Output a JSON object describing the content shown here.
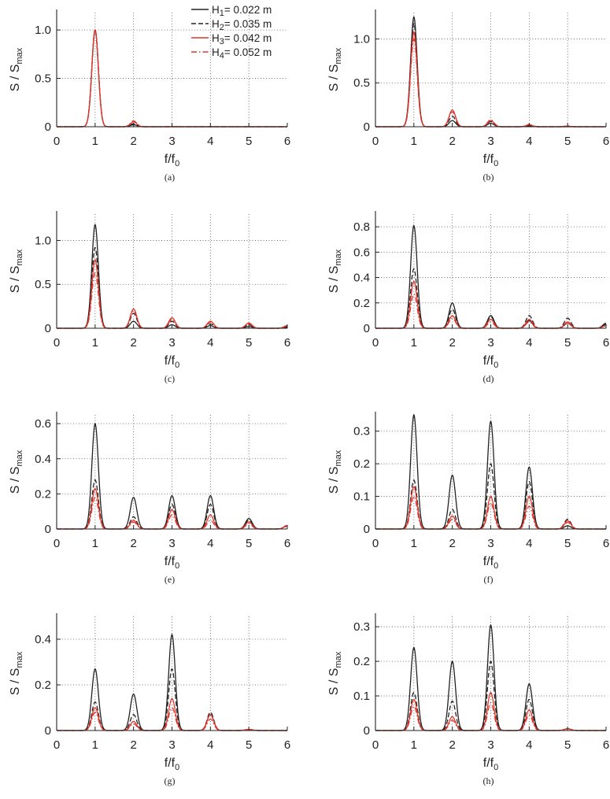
{
  "figure": {
    "panels_axis": {
      "x_label": "f/f0",
      "y_label": "S / Smax"
    },
    "captions": [
      "(a)",
      "(b)",
      "(c)",
      "(d)",
      "(e)",
      "(f)",
      "(g)",
      "(h)"
    ]
  },
  "legend": {
    "entries": [
      {
        "label": "H1= 0.022 m",
        "color": "#222222",
        "dash": "solid"
      },
      {
        "label": "H2= 0.035 m",
        "color": "#222222",
        "dash": "dashed"
      },
      {
        "label": "H3= 0.042 m",
        "color": "#e0352b",
        "dash": "solid"
      },
      {
        "label": "H4= 0.052 m",
        "color": "#e0352b",
        "dash": "dashdot"
      }
    ]
  },
  "chart_data": [
    {
      "type": "line",
      "caption": "(a)",
      "xlabel": "f/f0",
      "ylabel": "S / Smax",
      "xlim": [
        0,
        6
      ],
      "ylim": [
        0,
        1.18
      ],
      "yticks": [
        0,
        0.5,
        1.0
      ],
      "ytick_labels": [
        "0",
        "0.5",
        "1.0"
      ],
      "grid": true,
      "harmonics": [
        1,
        2,
        3,
        4,
        5,
        6
      ],
      "series": [
        {
          "name": "H1= 0.022 m",
          "peaks": [
            1.0,
            0.02,
            0,
            0,
            0,
            0
          ]
        },
        {
          "name": "H2= 0.035 m",
          "peaks": [
            1.0,
            0.03,
            0,
            0,
            0,
            0
          ]
        },
        {
          "name": "H3= 0.042 m",
          "peaks": [
            1.0,
            0.05,
            0,
            0,
            0,
            0
          ]
        },
        {
          "name": "H4= 0.052 m",
          "peaks": [
            1.0,
            0.06,
            0.005,
            0,
            0,
            0
          ]
        }
      ]
    },
    {
      "type": "line",
      "caption": "(b)",
      "xlabel": "f/f0",
      "ylabel": "S / Smax",
      "xlim": [
        0,
        6
      ],
      "ylim": [
        0,
        1.3
      ],
      "yticks": [
        0,
        0.5,
        1.0
      ],
      "ytick_labels": [
        "0",
        "0.5",
        "1.0"
      ],
      "grid": true,
      "harmonics": [
        1,
        2,
        3,
        4,
        5,
        6
      ],
      "series": [
        {
          "name": "H1= 0.022 m",
          "peaks": [
            1.25,
            0.07,
            0.04,
            0.01,
            0,
            0
          ]
        },
        {
          "name": "H2= 0.035 m",
          "peaks": [
            1.18,
            0.12,
            0.06,
            0.015,
            0.005,
            0
          ]
        },
        {
          "name": "H3= 0.042 m",
          "peaks": [
            1.08,
            0.19,
            0.07,
            0.02,
            0.005,
            0
          ]
        },
        {
          "name": "H4= 0.052 m",
          "peaks": [
            1.0,
            0.17,
            0.08,
            0.025,
            0.01,
            0
          ]
        }
      ]
    },
    {
      "type": "line",
      "caption": "(c)",
      "xlabel": "f/f0",
      "ylabel": "S / Smax",
      "xlim": [
        0,
        6
      ],
      "ylim": [
        0,
        1.3
      ],
      "yticks": [
        0,
        0.5,
        1.0
      ],
      "ytick_labels": [
        "0",
        "0.5",
        "1.0"
      ],
      "grid": true,
      "harmonics": [
        1,
        2,
        3,
        4,
        5,
        6
      ],
      "series": [
        {
          "name": "H1= 0.022 m",
          "peaks": [
            1.18,
            0.08,
            0.04,
            0.03,
            0.02,
            0.01
          ]
        },
        {
          "name": "H2= 0.035 m",
          "peaks": [
            0.92,
            0.17,
            0.08,
            0.05,
            0.04,
            0.02
          ]
        },
        {
          "name": "H3= 0.042 m",
          "peaks": [
            0.78,
            0.22,
            0.12,
            0.08,
            0.06,
            0.03
          ]
        },
        {
          "name": "H4= 0.052 m",
          "peaks": [
            0.63,
            0.2,
            0.1,
            0.07,
            0.05,
            0.025
          ]
        }
      ]
    },
    {
      "type": "line",
      "caption": "(d)",
      "xlabel": "f/f0",
      "ylabel": "S / Smax",
      "xlim": [
        0,
        6
      ],
      "ylim": [
        0,
        0.9
      ],
      "yticks": [
        0,
        0.2,
        0.4,
        0.6,
        0.8
      ],
      "ytick_labels": [
        "0",
        "0.2",
        "0.4",
        "0.6",
        "0.8"
      ],
      "grid": true,
      "harmonics": [
        1,
        2,
        3,
        4,
        5,
        6
      ],
      "series": [
        {
          "name": "H1= 0.022 m",
          "peaks": [
            0.81,
            0.2,
            0.1,
            0.06,
            0.04,
            0.04
          ]
        },
        {
          "name": "H2= 0.035 m",
          "peaks": [
            0.47,
            0.15,
            0.09,
            0.1,
            0.08,
            0.03
          ]
        },
        {
          "name": "H3= 0.042 m",
          "peaks": [
            0.37,
            0.1,
            0.07,
            0.07,
            0.05,
            0.02
          ]
        },
        {
          "name": "H4= 0.052 m",
          "peaks": [
            0.27,
            0.08,
            0.05,
            0.05,
            0.04,
            0.02
          ]
        }
      ]
    },
    {
      "type": "line",
      "caption": "(e)",
      "xlabel": "f/f0",
      "ylabel": "S / Smax",
      "xlim": [
        0,
        6
      ],
      "ylim": [
        0,
        0.65
      ],
      "yticks": [
        0,
        0.2,
        0.4,
        0.6
      ],
      "ytick_labels": [
        "0",
        "0.2",
        "0.4",
        "0.6"
      ],
      "grid": true,
      "harmonics": [
        1,
        2,
        3,
        4,
        5,
        6
      ],
      "series": [
        {
          "name": "H1= 0.022 m",
          "peaks": [
            0.6,
            0.18,
            0.19,
            0.19,
            0.06,
            0.02
          ]
        },
        {
          "name": "H2= 0.035 m",
          "peaks": [
            0.28,
            0.07,
            0.14,
            0.14,
            0.05,
            0.02
          ]
        },
        {
          "name": "H3= 0.042 m",
          "peaks": [
            0.23,
            0.05,
            0.11,
            0.08,
            0.04,
            0.02
          ]
        },
        {
          "name": "H4= 0.052 m",
          "peaks": [
            0.18,
            0.04,
            0.08,
            0.05,
            0.03,
            0.015
          ]
        }
      ]
    },
    {
      "type": "line",
      "caption": "(f)",
      "xlabel": "f/f0",
      "ylabel": "S / Smax",
      "xlim": [
        0,
        6
      ],
      "ylim": [
        0,
        0.35
      ],
      "yticks": [
        0,
        0.1,
        0.2,
        0.3
      ],
      "ytick_labels": [
        "0",
        "0.1",
        "0.2",
        "0.3"
      ],
      "grid": true,
      "harmonics": [
        1,
        2,
        3,
        4,
        5,
        6
      ],
      "series": [
        {
          "name": "H1= 0.022 m",
          "peaks": [
            0.35,
            0.165,
            0.33,
            0.19,
            0.01,
            0
          ]
        },
        {
          "name": "H2= 0.035 m",
          "peaks": [
            0.15,
            0.06,
            0.2,
            0.145,
            0.03,
            0
          ]
        },
        {
          "name": "H3= 0.042 m",
          "peaks": [
            0.13,
            0.04,
            0.1,
            0.1,
            0.025,
            0
          ]
        },
        {
          "name": "H4= 0.052 m",
          "peaks": [
            0.1,
            0.03,
            0.08,
            0.07,
            0.02,
            0
          ]
        }
      ]
    },
    {
      "type": "line",
      "caption": "(g)",
      "xlabel": "f/f0",
      "ylabel": "S / Smax",
      "xlim": [
        0,
        6
      ],
      "ylim": [
        0,
        0.5
      ],
      "yticks": [
        0,
        0.2,
        0.4
      ],
      "ytick_labels": [
        "0",
        "0.2",
        "0.4"
      ],
      "grid": true,
      "harmonics": [
        1,
        2,
        3,
        4,
        5,
        6
      ],
      "series": [
        {
          "name": "H1= 0.022 m",
          "peaks": [
            0.27,
            0.16,
            0.42,
            0.07,
            0.005,
            0
          ]
        },
        {
          "name": "H2= 0.035 m",
          "peaks": [
            0.125,
            0.07,
            0.27,
            0.08,
            0.005,
            0
          ]
        },
        {
          "name": "H3= 0.042 m",
          "peaks": [
            0.1,
            0.04,
            0.14,
            0.07,
            0.005,
            0
          ]
        },
        {
          "name": "H4= 0.052 m",
          "peaks": [
            0.08,
            0.03,
            0.1,
            0.05,
            0.005,
            0
          ]
        }
      ]
    },
    {
      "type": "line",
      "caption": "(h)",
      "xlabel": "f/f0",
      "ylabel": "S / Smax",
      "xlim": [
        0,
        6
      ],
      "ylim": [
        0,
        0.33
      ],
      "yticks": [
        0,
        0.1,
        0.2,
        0.3
      ],
      "ytick_labels": [
        "0",
        "0.1",
        "0.2",
        "0.3"
      ],
      "grid": true,
      "harmonics": [
        1,
        2,
        3,
        4,
        5,
        6
      ],
      "series": [
        {
          "name": "H1= 0.022 m",
          "peaks": [
            0.24,
            0.2,
            0.305,
            0.135,
            0.005,
            0
          ]
        },
        {
          "name": "H2= 0.035 m",
          "peaks": [
            0.11,
            0.085,
            0.2,
            0.09,
            0.005,
            0
          ]
        },
        {
          "name": "H3= 0.042 m",
          "peaks": [
            0.09,
            0.04,
            0.11,
            0.06,
            0.005,
            0
          ]
        },
        {
          "name": "H4= 0.052 m",
          "peaks": [
            0.07,
            0.03,
            0.08,
            0.045,
            0.005,
            0
          ]
        }
      ]
    }
  ]
}
